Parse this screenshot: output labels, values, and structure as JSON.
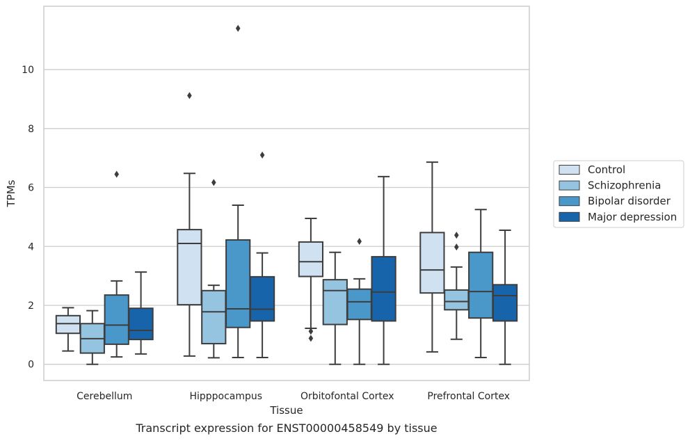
{
  "chart_data": {
    "type": "box",
    "title": "Transcript expression for ENST00000458549 by tissue",
    "xlabel": "Tissue",
    "ylabel": "TPMs",
    "ylim": [
      -0.55,
      12.15
    ],
    "yticks": [
      0,
      2,
      4,
      6,
      8,
      10
    ],
    "grid": "horizontal",
    "legend_position": "right",
    "categories": [
      "Cerebellum",
      "Hipppocampus",
      "Orbitofontal Cortex",
      "Prefrontal Cortex"
    ],
    "series": [
      {
        "name": "Control",
        "color": "#d0e1f2",
        "boxes": [
          {
            "whisker_low": 0.45,
            "q1": 1.05,
            "median": 1.38,
            "q3": 1.65,
            "whisker_high": 1.92,
            "outliers": []
          },
          {
            "whisker_low": 0.28,
            "q1": 2.02,
            "median": 4.1,
            "q3": 4.57,
            "whisker_high": 6.48,
            "outliers": [
              9.12
            ]
          },
          {
            "whisker_low": 1.22,
            "q1": 2.98,
            "median": 3.48,
            "q3": 4.15,
            "whisker_high": 4.95,
            "outliers": [
              1.12,
              0.88
            ]
          },
          {
            "whisker_low": 0.42,
            "q1": 2.42,
            "median": 3.2,
            "q3": 4.47,
            "whisker_high": 6.86,
            "outliers": []
          }
        ]
      },
      {
        "name": "Schizophrenia",
        "color": "#94c4df",
        "boxes": [
          {
            "whisker_low": 0.0,
            "q1": 0.38,
            "median": 0.87,
            "q3": 1.38,
            "whisker_high": 1.82,
            "outliers": []
          },
          {
            "whisker_low": 0.22,
            "q1": 0.7,
            "median": 1.78,
            "q3": 2.5,
            "whisker_high": 2.68,
            "outliers": [
              6.17
            ]
          },
          {
            "whisker_low": 0.0,
            "q1": 1.35,
            "median": 2.5,
            "q3": 2.87,
            "whisker_high": 3.8,
            "outliers": []
          },
          {
            "whisker_low": 0.85,
            "q1": 1.85,
            "median": 2.13,
            "q3": 2.52,
            "whisker_high": 3.3,
            "outliers": [
              4.38,
              3.98
            ]
          }
        ]
      },
      {
        "name": "Bipolar disorder",
        "color": "#4a98c9",
        "boxes": [
          {
            "whisker_low": 0.25,
            "q1": 0.68,
            "median": 1.33,
            "q3": 2.35,
            "whisker_high": 2.83,
            "outliers": [
              6.45
            ]
          },
          {
            "whisker_low": 0.23,
            "q1": 1.25,
            "median": 1.88,
            "q3": 4.22,
            "whisker_high": 5.4,
            "outliers": [
              11.4
            ]
          },
          {
            "whisker_low": 0.0,
            "q1": 1.52,
            "median": 2.12,
            "q3": 2.55,
            "whisker_high": 2.9,
            "outliers": [
              4.17
            ]
          },
          {
            "whisker_low": 0.23,
            "q1": 1.57,
            "median": 2.47,
            "q3": 3.8,
            "whisker_high": 5.25,
            "outliers": []
          }
        ]
      },
      {
        "name": "Major depression",
        "color": "#1764ab",
        "boxes": [
          {
            "whisker_low": 0.35,
            "q1": 0.84,
            "median": 1.15,
            "q3": 1.9,
            "whisker_high": 3.13,
            "outliers": []
          },
          {
            "whisker_low": 0.23,
            "q1": 1.47,
            "median": 1.87,
            "q3": 2.97,
            "whisker_high": 3.78,
            "outliers": [
              7.1
            ]
          },
          {
            "whisker_low": 0.0,
            "q1": 1.47,
            "median": 2.45,
            "q3": 3.65,
            "whisker_high": 6.37,
            "outliers": []
          },
          {
            "whisker_low": 0.0,
            "q1": 1.47,
            "median": 2.33,
            "q3": 2.7,
            "whisker_high": 4.55,
            "outliers": []
          }
        ]
      }
    ]
  }
}
